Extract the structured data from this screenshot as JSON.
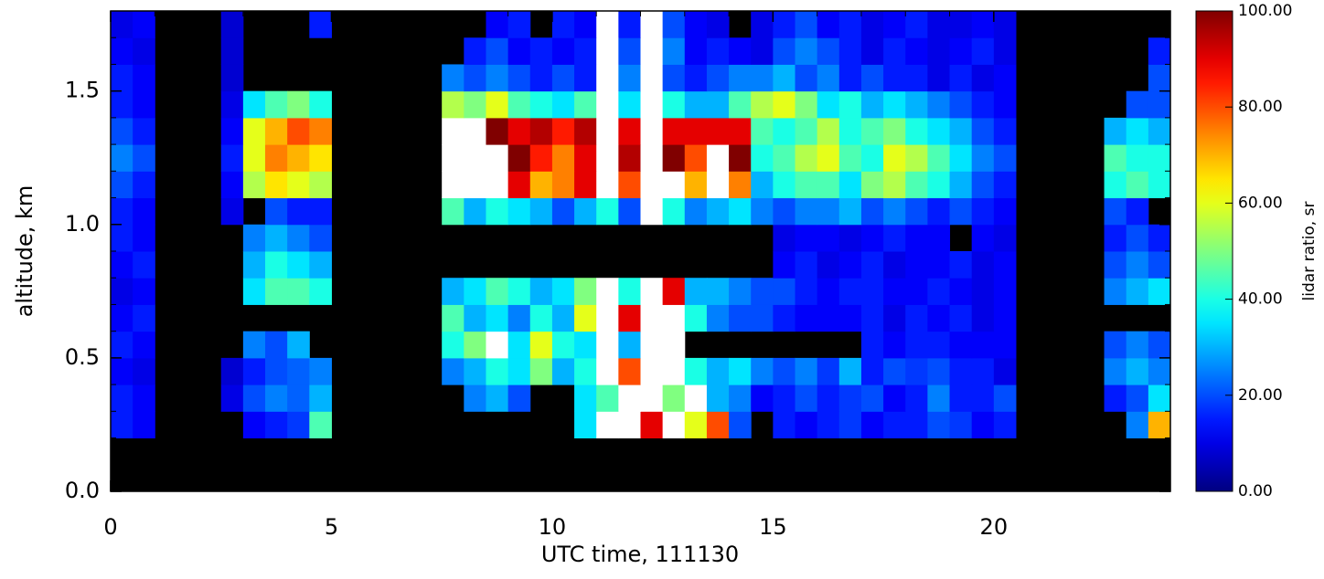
{
  "chart_data": {
    "type": "heatmap",
    "xlabel": "UTC time, 111130",
    "ylabel": "altitude, km",
    "colorbar_label": "lidar ratio, sr",
    "xlim": [
      0,
      24
    ],
    "ylim": [
      0,
      1.8
    ],
    "xticks": [
      0,
      5,
      10,
      15,
      20
    ],
    "yticks": [
      {
        "value": 0,
        "label": "0.0"
      },
      0.5,
      {
        "value": 1,
        "label": "1.0"
      },
      1.5
    ],
    "clim": [
      0,
      100
    ],
    "cticks": [
      {
        "value": 0,
        "label": "0.00"
      },
      {
        "value": 20,
        "label": "20.00"
      },
      {
        "value": 40,
        "label": "40.00"
      },
      {
        "value": 60,
        "label": "60.00"
      },
      {
        "value": 80,
        "label": "80.00"
      },
      {
        "value": 100,
        "label": "100.00"
      }
    ],
    "colormap": "jet",
    "missing_color": "#000000",
    "over_color": "#ffffff",
    "x": [
      0.25,
      0.75,
      1.25,
      1.75,
      2.25,
      2.75,
      3.25,
      3.75,
      4.25,
      4.75,
      5.25,
      5.75,
      6.25,
      6.75,
      7.25,
      7.75,
      8.25,
      8.75,
      9.25,
      9.75,
      10.25,
      10.75,
      11.25,
      11.75,
      12.25,
      12.75,
      13.25,
      13.75,
      14.25,
      14.75,
      15.25,
      15.75,
      16.25,
      16.75,
      17.25,
      17.75,
      18.25,
      18.75,
      19.25,
      19.75,
      20.25,
      20.75,
      21.25,
      21.75,
      22.25,
      22.75,
      23.25,
      23.75
    ],
    "y": [
      0.05,
      0.15,
      0.25,
      0.35,
      0.45,
      0.55,
      0.65,
      0.75,
      0.85,
      0.95,
      1.05,
      1.15,
      1.25,
      1.35,
      1.45,
      1.55,
      1.65,
      1.75
    ],
    "z": [
      [
        null,
        null,
        null,
        null,
        null,
        null,
        null,
        null,
        null,
        null,
        null,
        null,
        null,
        null,
        null,
        null,
        null,
        null,
        null,
        null,
        null,
        null,
        null,
        null,
        null,
        null,
        null,
        null,
        null,
        null,
        null,
        null,
        null,
        null,
        null,
        null,
        null,
        null,
        null,
        null,
        null,
        null,
        null,
        null,
        null,
        null,
        null,
        null
      ],
      [
        null,
        null,
        null,
        null,
        null,
        null,
        null,
        null,
        null,
        null,
        null,
        null,
        null,
        null,
        null,
        null,
        null,
        null,
        null,
        null,
        null,
        null,
        null,
        null,
        null,
        null,
        null,
        null,
        null,
        null,
        null,
        null,
        null,
        null,
        null,
        null,
        null,
        null,
        null,
        null,
        null,
        null,
        null,
        null,
        null,
        null,
        null,
        null
      ],
      [
        15,
        12,
        null,
        null,
        null,
        null,
        12,
        15,
        18,
        45,
        null,
        null,
        null,
        null,
        null,
        null,
        null,
        null,
        null,
        null,
        null,
        35,
        120,
        120,
        90,
        120,
        60,
        80,
        20,
        null,
        15,
        12,
        15,
        18,
        12,
        15,
        15,
        20,
        18,
        12,
        15,
        null,
        null,
        null,
        null,
        null,
        25,
        70
      ],
      [
        15,
        12,
        null,
        null,
        null,
        10,
        20,
        25,
        22,
        30,
        null,
        null,
        null,
        null,
        null,
        null,
        25,
        30,
        20,
        null,
        null,
        35,
        45,
        120,
        120,
        50,
        120,
        30,
        25,
        12,
        15,
        20,
        15,
        18,
        20,
        12,
        15,
        25,
        15,
        15,
        20,
        null,
        null,
        null,
        null,
        15,
        20,
        35
      ],
      [
        12,
        10,
        null,
        null,
        null,
        8,
        15,
        20,
        22,
        25,
        null,
        null,
        null,
        null,
        null,
        25,
        30,
        40,
        35,
        50,
        30,
        40,
        120,
        80,
        120,
        120,
        40,
        30,
        35,
        25,
        20,
        25,
        18,
        30,
        15,
        20,
        18,
        20,
        15,
        15,
        10,
        null,
        null,
        null,
        null,
        25,
        30,
        25
      ],
      [
        15,
        12,
        null,
        null,
        null,
        null,
        25,
        20,
        30,
        null,
        null,
        null,
        null,
        null,
        null,
        40,
        50,
        120,
        35,
        60,
        40,
        35,
        120,
        30,
        120,
        120,
        null,
        null,
        null,
        null,
        null,
        null,
        null,
        null,
        15,
        12,
        15,
        15,
        12,
        12,
        12,
        null,
        null,
        null,
        null,
        20,
        25,
        20
      ],
      [
        12,
        15,
        null,
        null,
        null,
        null,
        null,
        null,
        null,
        null,
        null,
        null,
        null,
        null,
        null,
        45,
        30,
        35,
        25,
        40,
        30,
        60,
        120,
        90,
        120,
        120,
        40,
        25,
        20,
        20,
        15,
        12,
        12,
        12,
        15,
        10,
        15,
        12,
        15,
        10,
        12,
        null,
        null,
        null,
        null,
        null,
        null,
        null
      ],
      [
        10,
        12,
        null,
        null,
        null,
        null,
        35,
        45,
        45,
        40,
        null,
        null,
        null,
        null,
        null,
        30,
        35,
        45,
        40,
        30,
        35,
        50,
        120,
        40,
        120,
        90,
        30,
        30,
        25,
        20,
        20,
        15,
        12,
        15,
        15,
        12,
        12,
        15,
        12,
        10,
        12,
        null,
        null,
        null,
        null,
        25,
        30,
        35
      ],
      [
        12,
        15,
        null,
        null,
        null,
        null,
        30,
        40,
        35,
        30,
        null,
        null,
        null,
        null,
        null,
        null,
        null,
        null,
        null,
        null,
        null,
        null,
        null,
        null,
        null,
        null,
        null,
        null,
        null,
        null,
        12,
        15,
        10,
        12,
        15,
        10,
        12,
        12,
        15,
        10,
        12,
        null,
        null,
        null,
        null,
        20,
        25,
        20
      ],
      [
        15,
        12,
        null,
        null,
        null,
        null,
        25,
        30,
        25,
        20,
        null,
        null,
        null,
        null,
        null,
        null,
        null,
        null,
        null,
        null,
        null,
        null,
        null,
        null,
        null,
        null,
        null,
        null,
        null,
        null,
        10,
        12,
        12,
        10,
        12,
        15,
        12,
        12,
        null,
        12,
        10,
        null,
        null,
        null,
        null,
        15,
        20,
        15
      ],
      [
        15,
        12,
        null,
        null,
        null,
        10,
        null,
        20,
        15,
        15,
        null,
        null,
        null,
        null,
        null,
        45,
        30,
        40,
        35,
        30,
        20,
        30,
        40,
        20,
        120,
        40,
        25,
        30,
        35,
        25,
        20,
        25,
        25,
        30,
        20,
        25,
        20,
        15,
        20,
        15,
        12,
        null,
        null,
        null,
        null,
        20,
        15,
        null
      ],
      [
        20,
        15,
        null,
        null,
        null,
        12,
        55,
        65,
        60,
        55,
        null,
        null,
        null,
        null,
        null,
        120,
        120,
        120,
        90,
        70,
        75,
        90,
        120,
        80,
        120,
        120,
        70,
        120,
        75,
        30,
        40,
        45,
        45,
        35,
        50,
        55,
        45,
        40,
        30,
        20,
        15,
        null,
        null,
        null,
        null,
        40,
        45,
        40
      ],
      [
        25,
        20,
        null,
        null,
        null,
        15,
        60,
        75,
        70,
        65,
        null,
        null,
        null,
        null,
        null,
        120,
        120,
        120,
        100,
        85,
        75,
        90,
        120,
        95,
        120,
        100,
        80,
        120,
        100,
        40,
        45,
        55,
        60,
        45,
        40,
        60,
        55,
        45,
        35,
        25,
        20,
        null,
        null,
        null,
        null,
        45,
        40,
        40
      ],
      [
        20,
        15,
        null,
        null,
        null,
        12,
        60,
        70,
        80,
        75,
        null,
        null,
        null,
        null,
        null,
        120,
        120,
        100,
        90,
        95,
        85,
        95,
        120,
        90,
        120,
        90,
        90,
        90,
        90,
        45,
        40,
        45,
        55,
        40,
        45,
        50,
        40,
        35,
        30,
        20,
        15,
        null,
        null,
        null,
        null,
        30,
        35,
        30
      ],
      [
        15,
        12,
        null,
        null,
        null,
        10,
        35,
        45,
        50,
        40,
        null,
        null,
        null,
        null,
        null,
        55,
        50,
        60,
        45,
        40,
        35,
        45,
        120,
        35,
        120,
        40,
        30,
        30,
        45,
        55,
        60,
        50,
        35,
        40,
        30,
        35,
        30,
        25,
        20,
        15,
        12,
        null,
        null,
        null,
        null,
        null,
        20,
        20
      ],
      [
        15,
        12,
        null,
        null,
        null,
        8,
        null,
        null,
        null,
        null,
        null,
        null,
        null,
        null,
        null,
        25,
        20,
        25,
        20,
        15,
        20,
        15,
        120,
        25,
        120,
        20,
        15,
        20,
        25,
        25,
        30,
        20,
        25,
        15,
        20,
        15,
        15,
        10,
        15,
        10,
        12,
        null,
        null,
        null,
        null,
        null,
        null,
        20
      ],
      [
        12,
        10,
        null,
        null,
        null,
        8,
        null,
        null,
        null,
        null,
        null,
        null,
        null,
        null,
        null,
        null,
        15,
        20,
        12,
        15,
        12,
        15,
        120,
        20,
        120,
        25,
        12,
        15,
        12,
        10,
        20,
        25,
        20,
        15,
        10,
        15,
        12,
        10,
        12,
        15,
        10,
        null,
        null,
        null,
        null,
        null,
        null,
        15
      ],
      [
        10,
        12,
        null,
        null,
        null,
        8,
        null,
        null,
        null,
        15,
        null,
        null,
        null,
        null,
        null,
        null,
        null,
        12,
        15,
        null,
        15,
        12,
        120,
        15,
        120,
        20,
        12,
        10,
        null,
        10,
        15,
        20,
        12,
        15,
        10,
        12,
        15,
        10,
        10,
        12,
        10,
        null,
        null,
        null,
        null,
        null,
        null,
        null
      ]
    ]
  }
}
